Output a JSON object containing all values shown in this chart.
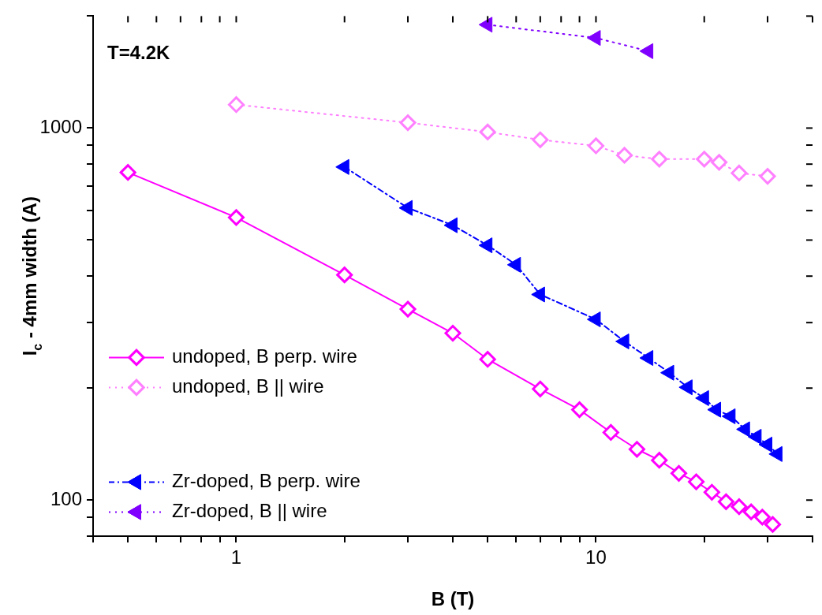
{
  "chart_data": {
    "type": "line",
    "xlabel": "B (T)",
    "ylabel": "I$_{c}$ - 4mm width (A)",
    "log": "xy",
    "grid": false,
    "legend": "left",
    "annotations": [
      "T=4.2K"
    ],
    "xlim": [
      0.4,
      40
    ],
    "xticks": [
      {
        "value": 0.4,
        "label": null
      },
      {
        "value": 0.5,
        "label": null
      },
      {
        "value": 0.6,
        "label": null
      },
      {
        "value": 0.7,
        "label": null
      },
      {
        "value": 0.8,
        "label": null
      },
      {
        "value": 0.9,
        "label": null
      },
      1,
      {
        "value": 2,
        "label": null
      },
      {
        "value": 3,
        "label": null
      },
      {
        "value": 4,
        "label": null
      },
      {
        "value": 5,
        "label": null
      },
      {
        "value": 6,
        "label": null
      },
      {
        "value": 7,
        "label": null
      },
      {
        "value": 8,
        "label": null
      },
      {
        "value": 9,
        "label": null
      },
      10,
      {
        "value": 20,
        "label": null
      },
      {
        "value": 30,
        "label": null
      },
      {
        "value": 40,
        "label": null
      }
    ],
    "ylim": [
      80,
      2000
    ],
    "yticks": [
      {
        "value": 80,
        "label": null
      },
      {
        "value": 90,
        "label": null
      },
      100,
      {
        "value": 200,
        "label": null
      },
      {
        "value": 300,
        "label": null
      },
      {
        "value": 400,
        "label": null
      },
      {
        "value": 500,
        "label": null
      },
      {
        "value": 600,
        "label": null
      },
      {
        "value": 700,
        "label": null
      },
      {
        "value": 800,
        "label": null
      },
      {
        "value": 900,
        "label": null
      },
      1000,
      {
        "value": 2000,
        "label": null
      }
    ],
    "series": [
      {
        "name": "undoped, B perp. wire",
        "color": "#ff00ff",
        "marker": "diamond",
        "line_style": "solid",
        "x": [
          0.5,
          1,
          2,
          3,
          4,
          5,
          7,
          9,
          11,
          13,
          15,
          17,
          19,
          21,
          23,
          25,
          27,
          29,
          31
        ],
        "values": [
          760,
          575,
          403,
          326,
          281,
          239,
          199,
          175,
          152,
          137,
          128,
          118,
          112,
          105,
          99,
          96,
          93,
          90,
          86
        ]
      },
      {
        "name": "undoped, B || wire",
        "color": "#ff80ff",
        "marker": "diamond",
        "line_style": "dotted",
        "x": [
          1,
          3,
          5,
          7,
          10,
          12,
          15,
          20,
          22,
          25,
          30
        ],
        "values": [
          1156,
          1034,
          976,
          930,
          896,
          845,
          825,
          825,
          809,
          757,
          742
        ]
      },
      {
        "name": "Zr-doped, B perp. wire",
        "color": "#0000ff",
        "marker": "triangle",
        "line_style": "dashed",
        "x": [
          2,
          3,
          4,
          5,
          6,
          7,
          10,
          12,
          14,
          16,
          18,
          20,
          21.6,
          23.7,
          26,
          28,
          30,
          32
        ],
        "values": [
          786,
          610,
          548,
          484,
          429,
          357,
          306,
          267,
          241,
          220,
          201,
          188,
          175,
          168,
          155,
          148,
          141,
          133
        ]
      },
      {
        "name": "Zr-doped, B || wire",
        "color": "#8000ff",
        "marker": "triangle",
        "line_style": "dotted",
        "x": [
          5,
          10,
          14
        ],
        "values": [
          1896,
          1747,
          1610
        ]
      }
    ]
  }
}
